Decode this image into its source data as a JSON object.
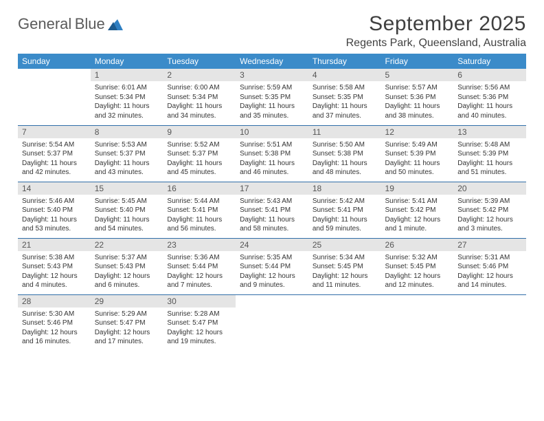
{
  "brand": {
    "part1": "General",
    "part2": "Blue"
  },
  "title": "September 2025",
  "location": "Regents Park, Queensland, Australia",
  "header_bg": "#3b8bc9",
  "daynum_bg": "#e5e5e5",
  "row_border": "#2f6da8",
  "weekdays": [
    "Sunday",
    "Monday",
    "Tuesday",
    "Wednesday",
    "Thursday",
    "Friday",
    "Saturday"
  ],
  "weeks": [
    [
      null,
      {
        "n": "1",
        "sr": "6:01 AM",
        "ss": "5:34 PM",
        "dl": "11 hours and 32 minutes."
      },
      {
        "n": "2",
        "sr": "6:00 AM",
        "ss": "5:34 PM",
        "dl": "11 hours and 34 minutes."
      },
      {
        "n": "3",
        "sr": "5:59 AM",
        "ss": "5:35 PM",
        "dl": "11 hours and 35 minutes."
      },
      {
        "n": "4",
        "sr": "5:58 AM",
        "ss": "5:35 PM",
        "dl": "11 hours and 37 minutes."
      },
      {
        "n": "5",
        "sr": "5:57 AM",
        "ss": "5:36 PM",
        "dl": "11 hours and 38 minutes."
      },
      {
        "n": "6",
        "sr": "5:56 AM",
        "ss": "5:36 PM",
        "dl": "11 hours and 40 minutes."
      }
    ],
    [
      {
        "n": "7",
        "sr": "5:54 AM",
        "ss": "5:37 PM",
        "dl": "11 hours and 42 minutes."
      },
      {
        "n": "8",
        "sr": "5:53 AM",
        "ss": "5:37 PM",
        "dl": "11 hours and 43 minutes."
      },
      {
        "n": "9",
        "sr": "5:52 AM",
        "ss": "5:37 PM",
        "dl": "11 hours and 45 minutes."
      },
      {
        "n": "10",
        "sr": "5:51 AM",
        "ss": "5:38 PM",
        "dl": "11 hours and 46 minutes."
      },
      {
        "n": "11",
        "sr": "5:50 AM",
        "ss": "5:38 PM",
        "dl": "11 hours and 48 minutes."
      },
      {
        "n": "12",
        "sr": "5:49 AM",
        "ss": "5:39 PM",
        "dl": "11 hours and 50 minutes."
      },
      {
        "n": "13",
        "sr": "5:48 AM",
        "ss": "5:39 PM",
        "dl": "11 hours and 51 minutes."
      }
    ],
    [
      {
        "n": "14",
        "sr": "5:46 AM",
        "ss": "5:40 PM",
        "dl": "11 hours and 53 minutes."
      },
      {
        "n": "15",
        "sr": "5:45 AM",
        "ss": "5:40 PM",
        "dl": "11 hours and 54 minutes."
      },
      {
        "n": "16",
        "sr": "5:44 AM",
        "ss": "5:41 PM",
        "dl": "11 hours and 56 minutes."
      },
      {
        "n": "17",
        "sr": "5:43 AM",
        "ss": "5:41 PM",
        "dl": "11 hours and 58 minutes."
      },
      {
        "n": "18",
        "sr": "5:42 AM",
        "ss": "5:41 PM",
        "dl": "11 hours and 59 minutes."
      },
      {
        "n": "19",
        "sr": "5:41 AM",
        "ss": "5:42 PM",
        "dl": "12 hours and 1 minute."
      },
      {
        "n": "20",
        "sr": "5:39 AM",
        "ss": "5:42 PM",
        "dl": "12 hours and 3 minutes."
      }
    ],
    [
      {
        "n": "21",
        "sr": "5:38 AM",
        "ss": "5:43 PM",
        "dl": "12 hours and 4 minutes."
      },
      {
        "n": "22",
        "sr": "5:37 AM",
        "ss": "5:43 PM",
        "dl": "12 hours and 6 minutes."
      },
      {
        "n": "23",
        "sr": "5:36 AM",
        "ss": "5:44 PM",
        "dl": "12 hours and 7 minutes."
      },
      {
        "n": "24",
        "sr": "5:35 AM",
        "ss": "5:44 PM",
        "dl": "12 hours and 9 minutes."
      },
      {
        "n": "25",
        "sr": "5:34 AM",
        "ss": "5:45 PM",
        "dl": "12 hours and 11 minutes."
      },
      {
        "n": "26",
        "sr": "5:32 AM",
        "ss": "5:45 PM",
        "dl": "12 hours and 12 minutes."
      },
      {
        "n": "27",
        "sr": "5:31 AM",
        "ss": "5:46 PM",
        "dl": "12 hours and 14 minutes."
      }
    ],
    [
      {
        "n": "28",
        "sr": "5:30 AM",
        "ss": "5:46 PM",
        "dl": "12 hours and 16 minutes."
      },
      {
        "n": "29",
        "sr": "5:29 AM",
        "ss": "5:47 PM",
        "dl": "12 hours and 17 minutes."
      },
      {
        "n": "30",
        "sr": "5:28 AM",
        "ss": "5:47 PM",
        "dl": "12 hours and 19 minutes."
      },
      null,
      null,
      null,
      null
    ]
  ],
  "labels": {
    "sunrise": "Sunrise:",
    "sunset": "Sunset:",
    "daylight": "Daylight:"
  }
}
